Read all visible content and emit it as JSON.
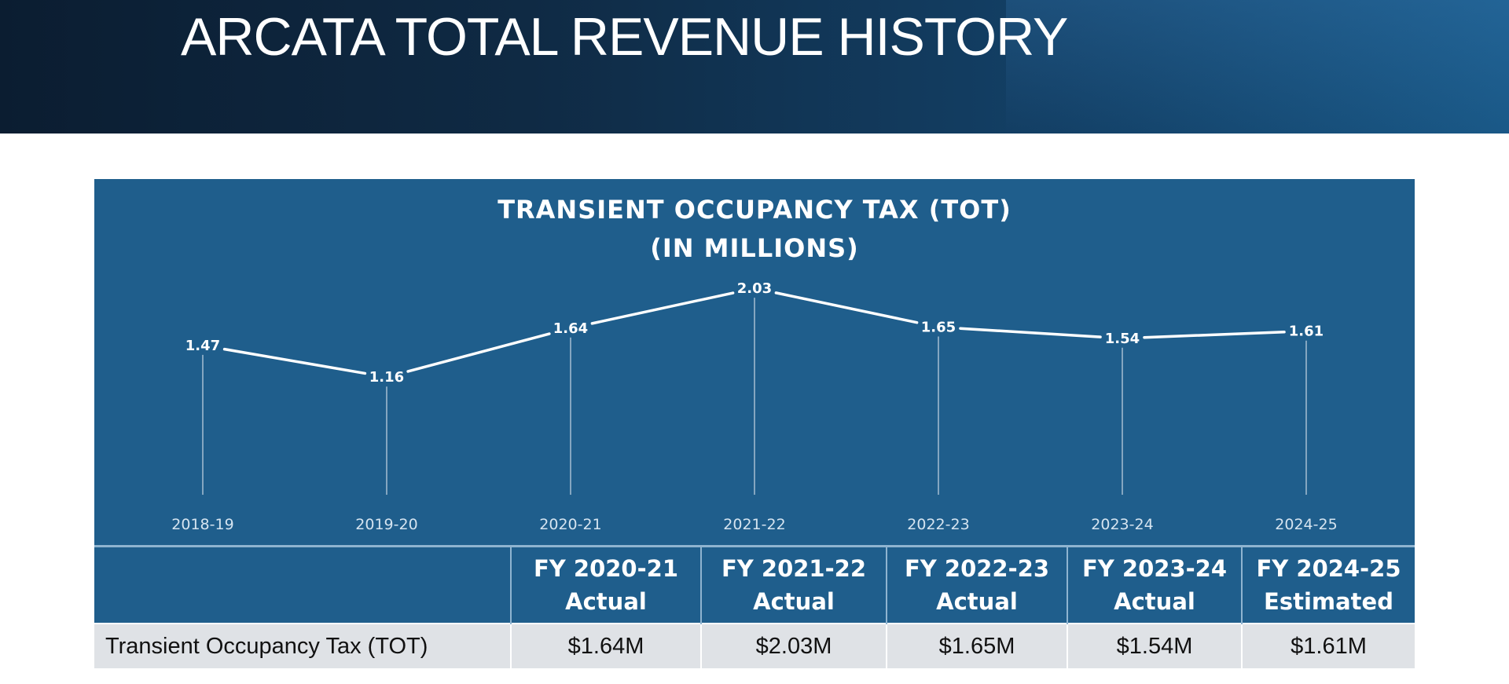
{
  "header": {
    "title": "ARCATA TOTAL REVENUE HISTORY"
  },
  "chart_data": {
    "type": "line",
    "title": "TRANSIENT OCCUPANCY TAX (TOT)",
    "subtitle": "(IN MILLIONS)",
    "categories": [
      "2018-19",
      "2019-20",
      "2020-21",
      "2021-22",
      "2022-23",
      "2023-24",
      "2024-25"
    ],
    "values": [
      1.47,
      1.16,
      1.64,
      2.03,
      1.65,
      1.54,
      1.61
    ],
    "data_labels": [
      "1.47",
      "1.16",
      "1.64",
      "2.03",
      "1.65",
      "1.54",
      "1.61"
    ],
    "xlabel": "",
    "ylabel": "",
    "grid": false,
    "legend": "none",
    "line_color": "#ffffff",
    "background_color": "#1f5e8c"
  },
  "table": {
    "headers": [
      {
        "line1": "",
        "line2": ""
      },
      {
        "line1": "FY 2020-21",
        "line2": "Actual"
      },
      {
        "line1": "FY 2021-22",
        "line2": "Actual"
      },
      {
        "line1": "FY 2022-23",
        "line2": "Actual"
      },
      {
        "line1": "FY 2023-24",
        "line2": "Actual"
      },
      {
        "line1": "FY 2024-25",
        "line2": "Estimated"
      }
    ],
    "row": {
      "label": "Transient Occupancy Tax (TOT)",
      "values": [
        "$1.64M",
        "$2.03M",
        "$1.65M",
        "$1.54M",
        "$1.61M"
      ]
    }
  }
}
